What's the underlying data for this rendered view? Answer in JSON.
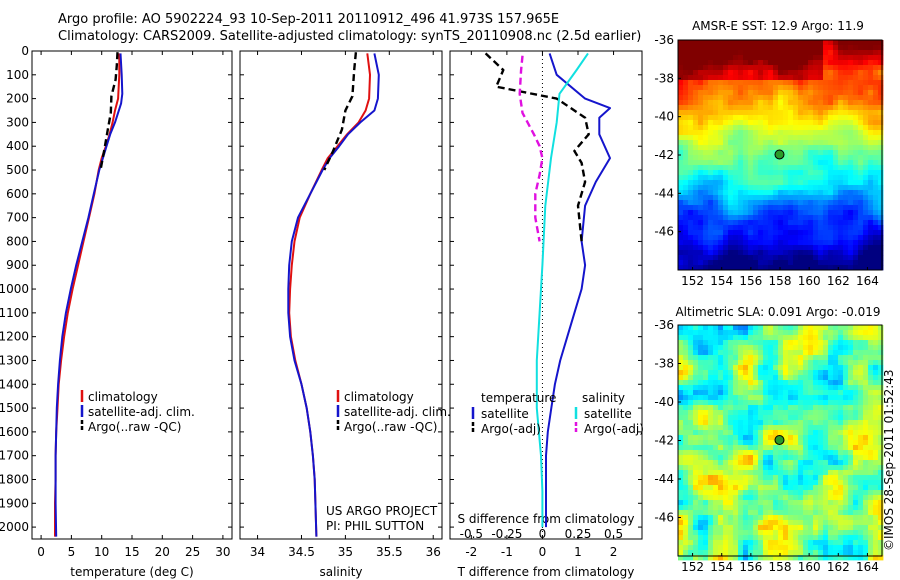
{
  "header": {
    "line1": "Argo profile: AO 5902224_93 10-Sep-2011 20110912_496 41.973S 157.965E",
    "line2": "Climatology: CARS2009. Satellite-adjusted climatology: synTS_20110908.nc (2.5d earlier)"
  },
  "credit": "©IMOS 28-Sep-2011 01:52:43",
  "project_note": [
    "US ARGO PROJECT",
    "PI: PHIL SUTTON"
  ],
  "colors": {
    "climatology": "#e01010",
    "satellite": "#1515cc",
    "argo": "#000000",
    "salinity_satellite": "#11e0e0",
    "salinity_argo": "#e010e0"
  },
  "chart_data": [
    {
      "type": "line",
      "id": "temperature",
      "xlabel": "temperature (deg C)",
      "ylabel": "",
      "xlim": [
        -1.5,
        31.5
      ],
      "ylim": [
        2050,
        0
      ],
      "xticks": [
        0,
        5,
        10,
        15,
        20,
        25,
        30
      ],
      "yticks": [
        0,
        100,
        200,
        300,
        400,
        500,
        600,
        700,
        800,
        900,
        1000,
        1100,
        1200,
        1300,
        1400,
        1500,
        1600,
        1700,
        1800,
        1900,
        2000
      ],
      "legend": [
        "climatology",
        "satellite-adj. clim.",
        "Argo(..raw -QC)"
      ],
      "series": [
        {
          "name": "climatology",
          "style": "solid",
          "color": "#e01010",
          "x": [
            12.9,
            12.9,
            12.7,
            12.2,
            11.8,
            11.3,
            10.7,
            10.0,
            9.5,
            8.8,
            7.9,
            7.0,
            6.1,
            5.2,
            4.4,
            3.8,
            3.3,
            2.9,
            2.7,
            2.5,
            2.4,
            2.4,
            2.3,
            2.3
          ],
          "y": [
            10,
            100,
            200,
            250,
            300,
            350,
            400,
            450,
            500,
            600,
            700,
            800,
            900,
            1000,
            1100,
            1200,
            1300,
            1400,
            1500,
            1600,
            1700,
            1800,
            1900,
            2040
          ]
        },
        {
          "name": "satellite-adj. clim.",
          "style": "solid",
          "color": "#1515cc",
          "x": [
            13.1,
            13.3,
            13.4,
            13.2,
            12.2,
            11.4,
            10.8,
            10.2,
            9.6,
            8.7,
            7.8,
            6.8,
            5.8,
            4.9,
            4.1,
            3.5,
            3.1,
            2.8,
            2.6,
            2.5,
            2.4,
            2.4,
            2.4,
            2.5
          ],
          "y": [
            10,
            100,
            180,
            220,
            300,
            350,
            400,
            450,
            500,
            600,
            700,
            800,
            900,
            1000,
            1100,
            1200,
            1300,
            1400,
            1500,
            1600,
            1700,
            1800,
            1900,
            2040
          ]
        },
        {
          "name": "Argo(..raw -QC)",
          "style": "dashed",
          "color": "#000000",
          "x": [
            12.6,
            12.5,
            12.3,
            11.6,
            11.5,
            11.0,
            10.4,
            9.8
          ],
          "y": [
            5,
            60,
            120,
            190,
            260,
            330,
            420,
            500
          ]
        }
      ]
    },
    {
      "type": "line",
      "id": "salinity",
      "xlabel": "salinity",
      "ylabel": "",
      "xlim": [
        33.8,
        36.1
      ],
      "ylim": [
        2050,
        0
      ],
      "xticks": [
        34,
        34.5,
        35,
        35.5,
        36
      ],
      "legend": [
        "climatology",
        "satellite-adj. clim.",
        "Argo(..raw -QC)"
      ],
      "series": [
        {
          "name": "climatology",
          "style": "solid",
          "color": "#e01010",
          "x": [
            35.25,
            35.28,
            35.27,
            35.23,
            35.15,
            35.02,
            34.91,
            34.8,
            34.73,
            34.6,
            34.48,
            34.42,
            34.39,
            34.37,
            34.36,
            34.38,
            34.43,
            34.5,
            34.56,
            34.6,
            34.63,
            34.65,
            34.67
          ],
          "y": [
            10,
            100,
            200,
            250,
            300,
            350,
            400,
            450,
            500,
            600,
            700,
            800,
            900,
            1000,
            1100,
            1200,
            1300,
            1400,
            1500,
            1600,
            1700,
            1800,
            2040
          ]
        },
        {
          "name": "satellite-adj. clim.",
          "style": "solid",
          "color": "#1515cc",
          "x": [
            35.33,
            35.38,
            35.37,
            35.33,
            35.17,
            35.03,
            34.93,
            34.82,
            34.74,
            34.6,
            34.46,
            34.39,
            34.36,
            34.35,
            34.35,
            34.37,
            34.42,
            34.5,
            34.56,
            34.6,
            34.63,
            34.65,
            34.67
          ],
          "y": [
            10,
            100,
            200,
            250,
            300,
            350,
            400,
            450,
            500,
            600,
            700,
            800,
            900,
            1000,
            1100,
            1200,
            1300,
            1400,
            1500,
            1600,
            1700,
            1800,
            2040
          ]
        },
        {
          "name": "Argo(..raw -QC)",
          "style": "dashed",
          "color": "#000000",
          "x": [
            35.12,
            35.1,
            35.08,
            35.0,
            34.96,
            34.86,
            34.76
          ],
          "y": [
            5,
            80,
            190,
            250,
            330,
            420,
            500
          ]
        }
      ]
    },
    {
      "type": "line",
      "id": "difference",
      "xlabel": "T difference from climatology",
      "ylabel": "",
      "top_axis_label": "S difference from climatology",
      "xlim": [
        -2.6,
        2.8
      ],
      "ylim": [
        2050,
        0
      ],
      "xticks": [
        -2,
        -1,
        0,
        1,
        2
      ],
      "top_ticks": [
        -0.5,
        -0.25,
        0,
        0.25,
        0.5
      ],
      "legend": {
        "temperature": [
          "satellite",
          "Argo(-adj)"
        ],
        "salinity": [
          "satellite",
          "Argo(-adj)"
        ]
      },
      "series": [
        {
          "name": "satellite",
          "group": "temperature",
          "style": "solid",
          "color": "#1515cc",
          "x": [
            0.2,
            0.4,
            1.2,
            1.9,
            1.6,
            1.6,
            1.9,
            1.5,
            1.2,
            1.1,
            1.2,
            1.1,
            0.9,
            0.7,
            0.5,
            0.35,
            0.25,
            0.15,
            0.1,
            0.1,
            0.1
          ],
          "y": [
            10,
            100,
            200,
            240,
            280,
            350,
            450,
            550,
            650,
            800,
            900,
            1000,
            1100,
            1200,
            1300,
            1400,
            1500,
            1600,
            1700,
            1800,
            2000
          ]
        },
        {
          "name": "Argo(-adj)",
          "group": "temperature",
          "style": "dashed",
          "color": "#000000",
          "x": [
            -1.6,
            -1.1,
            -1.3,
            0.4,
            1.2,
            1.3,
            0.9,
            1.1,
            1.2,
            1.0,
            1.1
          ],
          "y": [
            10,
            80,
            150,
            200,
            280,
            350,
            420,
            470,
            550,
            650,
            800
          ]
        },
        {
          "name": "satellite",
          "group": "salinity",
          "style": "solid",
          "color": "#11e0e0",
          "x": [
            0.32,
            0.24,
            0.12,
            0.1,
            0.06,
            0.02,
            0.0,
            -0.02,
            -0.04,
            -0.04,
            -0.01,
            0.0,
            0.0
          ],
          "y": [
            10,
            80,
            180,
            300,
            450,
            650,
            900,
            1100,
            1300,
            1500,
            1700,
            1850,
            2000
          ]
        },
        {
          "name": "Argo(-adj)",
          "group": "salinity",
          "style": "dashed",
          "color": "#e010e0",
          "x": [
            -0.14,
            -0.15,
            -0.16,
            -0.14,
            -0.06,
            -0.02,
            0.0,
            -0.02,
            -0.05,
            -0.05,
            -0.02
          ],
          "y": [
            20,
            80,
            180,
            260,
            350,
            400,
            450,
            520,
            600,
            700,
            800
          ]
        }
      ]
    },
    {
      "type": "heatmap",
      "id": "sst-map",
      "title": "AMSR-E SST: 12.9 Argo: 11.9",
      "xlim": [
        151,
        165
      ],
      "ylim": [
        -48,
        -36
      ],
      "xticks": [
        152,
        154,
        156,
        158,
        160,
        162,
        164
      ],
      "yticks": [
        -36,
        -38,
        -40,
        -42,
        -44,
        -46
      ],
      "marker": {
        "lon": 157.965,
        "lat": -41.973
      }
    },
    {
      "type": "heatmap",
      "id": "sla-map",
      "title": "Altimetric SLA: 0.091 Argo: -0.019",
      "xlim": [
        151,
        165
      ],
      "ylim": [
        -48,
        -36
      ],
      "xticks": [
        152,
        154,
        156,
        158,
        160,
        162,
        164
      ],
      "yticks": [
        -36,
        -38,
        -40,
        -42,
        -44,
        -46
      ],
      "marker": {
        "lon": 157.965,
        "lat": -41.973
      }
    }
  ]
}
